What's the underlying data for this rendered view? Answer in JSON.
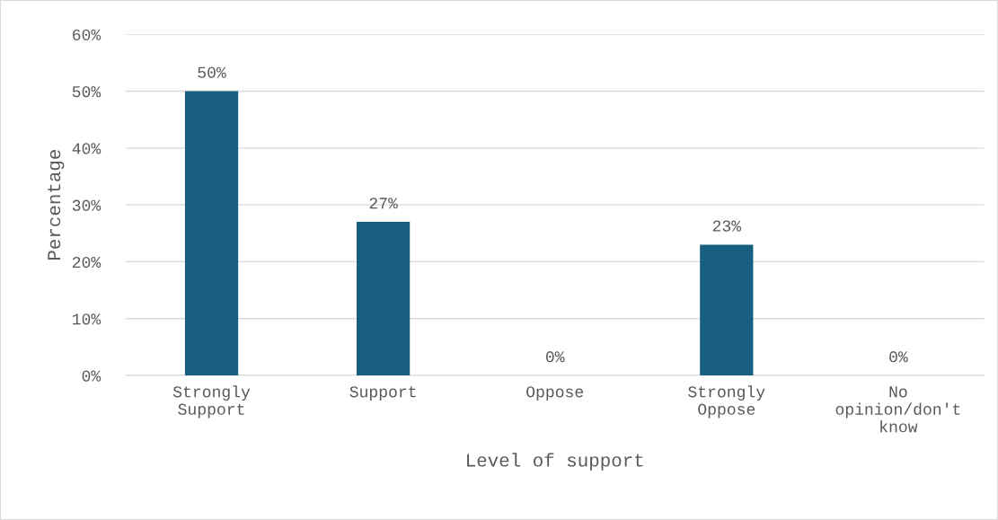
{
  "chart_data": {
    "type": "bar",
    "xlabel": "Level of support",
    "ylabel": "Percentage",
    "categories": [
      "Strongly\nSupport",
      "Support",
      "Oppose",
      "Strongly\nOppose",
      "No\nopinion/don't\nknow"
    ],
    "values": [
      50,
      27,
      0,
      23,
      0
    ],
    "color": "#175e80",
    "value_labels": [
      "50%",
      "27%",
      "0%",
      "23%",
      "0%"
    ],
    "ylim": [
      0,
      60
    ],
    "yticks": [
      {
        "value": 0,
        "label": "0%"
      },
      {
        "value": 10,
        "label": "10%"
      },
      {
        "value": 20,
        "label": "20%"
      },
      {
        "value": 30,
        "label": "30%"
      },
      {
        "value": 40,
        "label": "40%"
      },
      {
        "value": 50,
        "label": "50%"
      },
      {
        "value": 60,
        "label": "60%"
      }
    ],
    "grid": "y",
    "legend": false
  }
}
